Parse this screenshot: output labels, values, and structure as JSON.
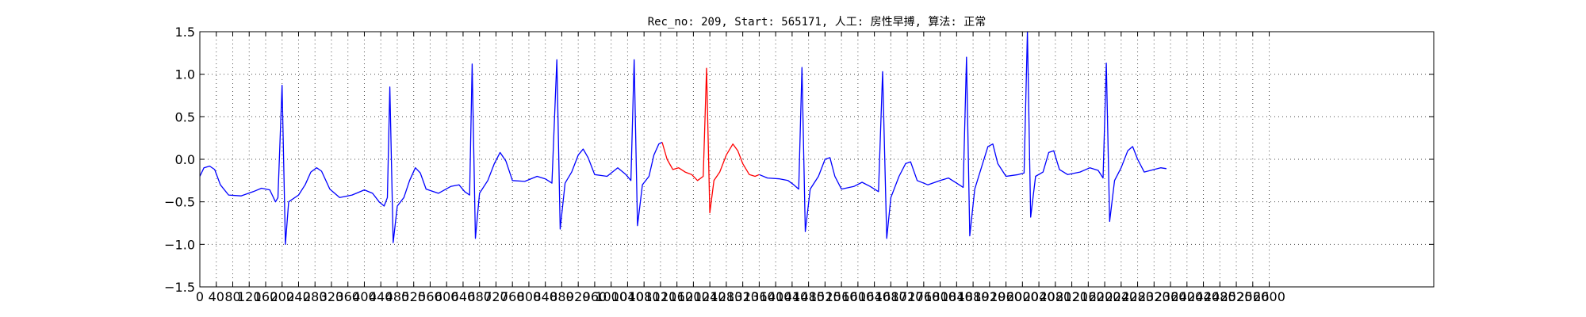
{
  "chart_data": {
    "type": "line",
    "title": "Rec_no: 209, Start: 565171, 人工: 房性早搏, 算法: 正常",
    "xlabel": "",
    "ylabel": "",
    "xlim": [
      0,
      1500
    ],
    "ylim": [
      -1.5,
      1.5
    ],
    "grid": true,
    "yticks": [
      -1.5,
      -1.0,
      -0.5,
      0.0,
      0.5,
      1.0,
      1.5
    ],
    "ytick_labels": [
      "−1.5",
      "−1.0",
      "−0.5",
      "0.0",
      "0.5",
      "1.0",
      "1.5"
    ],
    "xticks": [
      0,
      20,
      40,
      60,
      80,
      100,
      120,
      140,
      160,
      180,
      200,
      220,
      240,
      260,
      280,
      300,
      320,
      340,
      360,
      380,
      400,
      420,
      440,
      460,
      480,
      500,
      520,
      540,
      560,
      580,
      600,
      620,
      640,
      660,
      680,
      700,
      720,
      740,
      760,
      780,
      800,
      820,
      840,
      860,
      880,
      900,
      920,
      940,
      960,
      980,
      1000,
      1020,
      1040,
      1060,
      1080,
      1100,
      1120,
      1140,
      1160,
      1180,
      1200,
      1220,
      1240,
      1260,
      1280,
      1300
    ],
    "xtick_labels": [
      "0",
      "40",
      "80",
      "120",
      "160",
      "200",
      "240",
      "280",
      "320",
      "360",
      "400",
      "440",
      "480",
      "520",
      "560",
      "600",
      "640",
      "680",
      "720",
      "760",
      "800",
      "840",
      "880",
      "920",
      "960",
      "1000",
      "1040",
      "1080",
      "1120",
      "1160",
      "1200",
      "1240",
      "1280",
      "1320",
      "1360",
      "1400",
      "1440",
      "1480",
      "1520",
      "1560",
      "1600",
      "1640",
      "1680",
      "1720",
      "1760",
      "1800",
      "1840",
      "1880",
      "1920",
      "1960",
      "2000",
      "2040",
      "2080",
      "2120",
      "2160",
      "2200",
      "2240",
      "2280",
      "2320",
      "2360",
      "2400",
      "2440",
      "2480",
      "2520",
      "2560",
      "2600"
    ],
    "series": [
      {
        "color": "#0000ff",
        "points": [
          [
            0,
            -0.2
          ],
          [
            5,
            -0.1
          ],
          [
            12,
            -0.08
          ],
          [
            18,
            -0.12
          ],
          [
            25,
            -0.3
          ],
          [
            35,
            -0.42
          ],
          [
            50,
            -0.43
          ],
          [
            65,
            -0.38
          ],
          [
            75,
            -0.34
          ],
          [
            85,
            -0.36
          ],
          [
            88,
            -0.42
          ],
          [
            92,
            -0.5
          ],
          [
            95,
            -0.45
          ],
          [
            100,
            0.87
          ],
          [
            104,
            -1.0
          ],
          [
            108,
            -0.5
          ],
          [
            120,
            -0.42
          ],
          [
            128,
            -0.3
          ],
          [
            135,
            -0.15
          ],
          [
            142,
            -0.1
          ],
          [
            148,
            -0.14
          ],
          [
            158,
            -0.35
          ],
          [
            170,
            -0.45
          ],
          [
            185,
            -0.42
          ],
          [
            200,
            -0.36
          ],
          [
            210,
            -0.4
          ],
          [
            218,
            -0.5
          ],
          [
            224,
            -0.55
          ],
          [
            228,
            -0.45
          ],
          [
            231,
            0.85
          ],
          [
            235,
            -0.98
          ],
          [
            240,
            -0.55
          ],
          [
            248,
            -0.45
          ],
          [
            255,
            -0.25
          ],
          [
            262,
            -0.1
          ],
          [
            268,
            -0.16
          ],
          [
            275,
            -0.35
          ],
          [
            290,
            -0.4
          ],
          [
            305,
            -0.32
          ],
          [
            315,
            -0.3
          ],
          [
            322,
            -0.38
          ],
          [
            328,
            -0.42
          ],
          [
            331,
            1.12
          ],
          [
            335,
            -0.93
          ],
          [
            340,
            -0.4
          ],
          [
            350,
            -0.25
          ],
          [
            358,
            -0.05
          ],
          [
            365,
            0.08
          ],
          [
            372,
            -0.02
          ],
          [
            380,
            -0.25
          ],
          [
            395,
            -0.26
          ],
          [
            410,
            -0.2
          ],
          [
            420,
            -0.23
          ],
          [
            428,
            -0.28
          ],
          [
            434,
            1.17
          ],
          [
            438,
            -0.82
          ],
          [
            444,
            -0.28
          ],
          [
            452,
            -0.15
          ],
          [
            460,
            0.05
          ],
          [
            466,
            0.12
          ],
          [
            472,
            0.02
          ],
          [
            480,
            -0.18
          ],
          [
            495,
            -0.2
          ],
          [
            508,
            -0.1
          ],
          [
            518,
            -0.18
          ],
          [
            524,
            -0.25
          ],
          [
            528,
            1.17
          ],
          [
            532,
            -0.78
          ],
          [
            538,
            -0.3
          ],
          [
            546,
            -0.2
          ],
          [
            552,
            0.05
          ],
          [
            558,
            0.18
          ],
          [
            562,
            0.2
          ]
        ]
      },
      {
        "color": "#ff0000",
        "points": [
          [
            562,
            0.2
          ],
          [
            568,
            0.0
          ],
          [
            575,
            -0.12
          ],
          [
            582,
            -0.1
          ],
          [
            590,
            -0.15
          ],
          [
            598,
            -0.18
          ],
          [
            605,
            -0.25
          ],
          [
            612,
            -0.2
          ],
          [
            616,
            1.07
          ],
          [
            620,
            -0.63
          ],
          [
            625,
            -0.25
          ],
          [
            632,
            -0.15
          ],
          [
            640,
            0.05
          ],
          [
            648,
            0.18
          ],
          [
            654,
            0.1
          ],
          [
            660,
            -0.05
          ],
          [
            668,
            -0.18
          ],
          [
            675,
            -0.2
          ],
          [
            680,
            -0.18
          ]
        ]
      },
      {
        "color": "#0000ff",
        "points": [
          [
            680,
            -0.18
          ],
          [
            690,
            -0.22
          ],
          [
            705,
            -0.23
          ],
          [
            715,
            -0.25
          ],
          [
            722,
            -0.3
          ],
          [
            728,
            -0.35
          ],
          [
            732,
            1.08
          ],
          [
            736,
            -0.85
          ],
          [
            742,
            -0.35
          ],
          [
            752,
            -0.2
          ],
          [
            760,
            0.0
          ],
          [
            766,
            0.02
          ],
          [
            772,
            -0.2
          ],
          [
            780,
            -0.35
          ],
          [
            795,
            -0.32
          ],
          [
            805,
            -0.27
          ],
          [
            815,
            -0.32
          ],
          [
            825,
            -0.38
          ],
          [
            830,
            1.03
          ],
          [
            835,
            -0.93
          ],
          [
            840,
            -0.45
          ],
          [
            850,
            -0.2
          ],
          [
            858,
            -0.05
          ],
          [
            864,
            -0.03
          ],
          [
            872,
            -0.25
          ],
          [
            885,
            -0.3
          ],
          [
            900,
            -0.25
          ],
          [
            910,
            -0.22
          ],
          [
            920,
            -0.28
          ],
          [
            928,
            -0.33
          ],
          [
            932,
            1.2
          ],
          [
            936,
            -0.9
          ],
          [
            942,
            -0.35
          ],
          [
            950,
            -0.1
          ],
          [
            958,
            0.15
          ],
          [
            964,
            0.18
          ],
          [
            970,
            -0.05
          ],
          [
            980,
            -0.2
          ],
          [
            995,
            -0.18
          ],
          [
            1002,
            -0.16
          ],
          [
            1006,
            1.5
          ],
          [
            1010,
            -0.68
          ],
          [
            1016,
            -0.2
          ],
          [
            1025,
            -0.15
          ],
          [
            1032,
            0.08
          ],
          [
            1038,
            0.1
          ],
          [
            1045,
            -0.12
          ],
          [
            1055,
            -0.18
          ],
          [
            1070,
            -0.15
          ],
          [
            1082,
            -0.1
          ],
          [
            1092,
            -0.13
          ],
          [
            1098,
            -0.22
          ],
          [
            1102,
            1.13
          ],
          [
            1106,
            -0.73
          ],
          [
            1112,
            -0.25
          ],
          [
            1120,
            -0.1
          ],
          [
            1128,
            0.1
          ],
          [
            1134,
            0.15
          ],
          [
            1140,
            0.0
          ],
          [
            1148,
            -0.15
          ],
          [
            1160,
            -0.12
          ],
          [
            1168,
            -0.1
          ],
          [
            1175,
            -0.11
          ]
        ]
      }
    ]
  }
}
